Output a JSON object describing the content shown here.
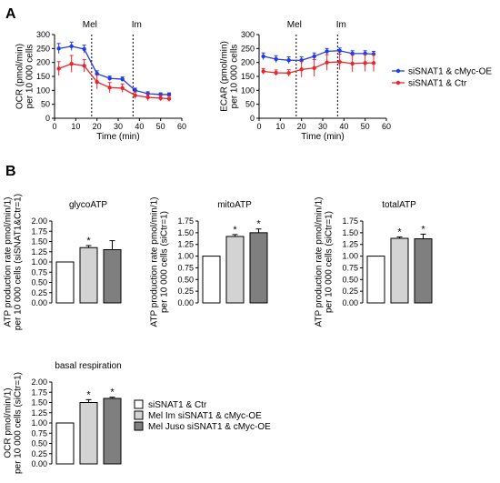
{
  "panel_a": {
    "label": "A",
    "legend": [
      {
        "label": "siSNAT1 & cMyc-OE",
        "color": "#1f3bea"
      },
      {
        "label": "siSNAT1 & Ctr",
        "color": "#e8262b"
      }
    ]
  },
  "panel_b": {
    "label": "B",
    "legend": [
      {
        "label": "siSNAT1 & Ctr",
        "color": "#ffffff"
      },
      {
        "label": "Mel Im siSNAT1 & cMyc-OE",
        "color": "#d3d3d3"
      },
      {
        "label": "Mel Juso siSNAT1 & cMyc-OE",
        "color": "#7f7f7f"
      }
    ]
  },
  "chart_data": [
    {
      "type": "line",
      "title": "",
      "xlabel": "Time (min)",
      "ylabel": "OCR (pmol/min)\nper 10 000 cells",
      "xlim": [
        0,
        60
      ],
      "ylim": [
        0,
        300
      ],
      "xticks": [
        0,
        10,
        20,
        30,
        40,
        50,
        60
      ],
      "yticks": [
        0,
        50,
        100,
        150,
        200,
        250,
        300
      ],
      "annotations": [
        {
          "text": "Mel",
          "x": 17.5
        },
        {
          "text": "Im",
          "x": 37
        }
      ],
      "markers_x": [
        17.5,
        37
      ],
      "series": [
        {
          "name": "siSNAT1 & cMyc-OE",
          "color": "#1f3bea",
          "x": [
            2,
            8,
            14,
            20,
            26,
            32,
            38,
            44,
            50,
            54
          ],
          "y": [
            250,
            258,
            248,
            160,
            143,
            140,
            100,
            88,
            85,
            85
          ],
          "err": [
            18,
            15,
            14,
            10,
            8,
            8,
            8,
            7,
            6,
            6
          ]
        },
        {
          "name": "siSNAT1 & Ctr",
          "color": "#e8262b",
          "x": [
            2,
            8,
            14,
            20,
            26,
            32,
            38,
            44,
            50,
            54
          ],
          "y": [
            178,
            195,
            188,
            130,
            110,
            108,
            82,
            75,
            72,
            70
          ],
          "err": [
            25,
            30,
            22,
            25,
            18,
            15,
            12,
            12,
            10,
            10
          ]
        }
      ]
    },
    {
      "type": "line",
      "title": "",
      "xlabel": "Time (min)",
      "ylabel": "ECAR (pmol/min)\nper 10 000 cells",
      "xlim": [
        0,
        60
      ],
      "ylim": [
        0,
        300
      ],
      "xticks": [
        0,
        10,
        20,
        30,
        40,
        50,
        60
      ],
      "yticks": [
        0,
        50,
        100,
        150,
        200,
        250,
        300
      ],
      "annotations": [
        {
          "text": "Mel",
          "x": 17.5
        },
        {
          "text": "Im",
          "x": 37
        }
      ],
      "markers_x": [
        17.5,
        37
      ],
      "series": [
        {
          "name": "siSNAT1 & cMyc-OE",
          "color": "#1f3bea",
          "x": [
            2,
            8,
            14,
            20,
            26,
            32,
            38,
            44,
            50,
            54
          ],
          "y": [
            222,
            212,
            208,
            208,
            222,
            240,
            242,
            232,
            232,
            230
          ],
          "err": [
            12,
            12,
            12,
            12,
            12,
            10,
            10,
            10,
            10,
            10
          ]
        },
        {
          "name": "siSNAT1 & Ctr",
          "color": "#e8262b",
          "x": [
            2,
            8,
            14,
            20,
            26,
            32,
            38,
            44,
            50,
            54
          ],
          "y": [
            168,
            163,
            162,
            175,
            180,
            200,
            202,
            196,
            198,
            198
          ],
          "err": [
            10,
            10,
            12,
            28,
            30,
            28,
            28,
            30,
            30,
            30
          ]
        }
      ]
    },
    {
      "type": "bar",
      "title": "glycoATP",
      "ylabel": "ATP production rate pmol/min/1)\nper 10 000 cells (siSNAT1&Ctr=1)",
      "ylim": [
        0,
        2.0
      ],
      "yticks": [
        "0.00",
        "0.25",
        "0.50",
        "0.75",
        "1.00",
        "1.25",
        "1.50",
        "1.75",
        "2.00"
      ],
      "values": [
        1.0,
        1.35,
        1.3
      ],
      "errors": [
        0,
        0.05,
        0.22
      ],
      "colors": [
        "#ffffff",
        "#d3d3d3",
        "#7f7f7f"
      ],
      "significance": [
        "",
        "*",
        ""
      ]
    },
    {
      "type": "bar",
      "title": "mitoATP",
      "ylabel": "ATP production rate pmol/min/1)\nper 10 000 cells (siCtr=1)",
      "ylim": [
        0,
        1.75
      ],
      "yticks": [
        "0.00",
        "0.25",
        "0.50",
        "0.75",
        "1.00",
        "1.25",
        "1.50",
        "1.75"
      ],
      "values": [
        1.0,
        1.42,
        1.5
      ],
      "errors": [
        0,
        0.04,
        0.08
      ],
      "colors": [
        "#ffffff",
        "#d3d3d3",
        "#7f7f7f"
      ],
      "significance": [
        "",
        "*",
        "*"
      ]
    },
    {
      "type": "bar",
      "title": "totalATP",
      "ylabel": "ATP production rate pmol/min/1)\nper 10 000 cells (siCtr=1)",
      "ylim": [
        0,
        1.75
      ],
      "yticks": [
        "0.00",
        "0.25",
        "0.50",
        "0.75",
        "1.00",
        "1.25",
        "1.50",
        "1.75"
      ],
      "values": [
        1.0,
        1.38,
        1.37
      ],
      "errors": [
        0,
        0.03,
        0.1
      ],
      "colors": [
        "#ffffff",
        "#d3d3d3",
        "#7f7f7f"
      ],
      "significance": [
        "",
        "*",
        "*"
      ]
    },
    {
      "type": "bar",
      "title": "basal respiration",
      "ylabel": "OCR pmol/min/1)\nper 10 000 cells (siCtr=1)",
      "ylim": [
        0,
        2.0
      ],
      "yticks": [
        "0.00",
        "0.25",
        "0.50",
        "0.75",
        "1.00",
        "1.25",
        "1.50",
        "1.75",
        "2.00"
      ],
      "values": [
        1.0,
        1.5,
        1.6
      ],
      "errors": [
        0,
        0.07,
        0.03
      ],
      "colors": [
        "#ffffff",
        "#d3d3d3",
        "#7f7f7f"
      ],
      "significance": [
        "",
        "*",
        "*"
      ]
    }
  ]
}
